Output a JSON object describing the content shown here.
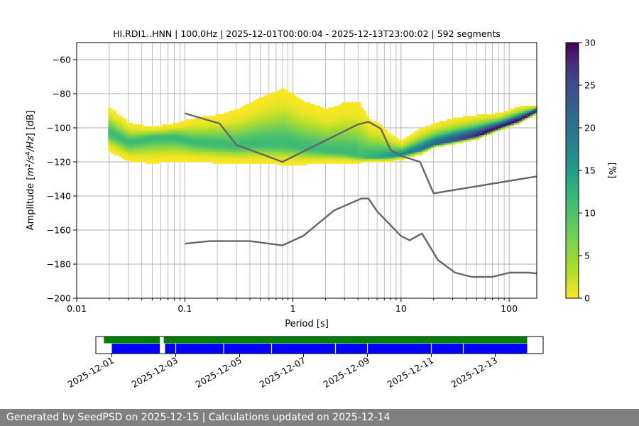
{
  "chart_data": [
    {
      "type": "heatmap",
      "title": "HI.RDI1..HNN | 100.0Hz | 2025-12-01T00:00:04 - 2025-12-13T23:00:02 | 592 segments",
      "xlabel": "Period [s]",
      "ylabel_parts": [
        "Amplitude [",
        "m",
        "2",
        "/",
        "s",
        "4",
        "/",
        "Hz",
        "] [dB]"
      ],
      "x_scale": "log",
      "xlim": [
        0.01,
        180
      ],
      "ylim": [
        -200,
        -50
      ],
      "x_ticks": [
        {
          "value": 0.01,
          "label": "0.01"
        },
        {
          "value": 0.1,
          "label": "0.1"
        },
        {
          "value": 1,
          "label": "1"
        },
        {
          "value": 10,
          "label": "10"
        },
        {
          "value": 100,
          "label": "100"
        }
      ],
      "y_ticks": [
        {
          "value": -60,
          "label": "−60"
        },
        {
          "value": -80,
          "label": "−80"
        },
        {
          "value": -100,
          "label": "−100"
        },
        {
          "value": -120,
          "label": "−120"
        },
        {
          "value": -140,
          "label": "−140"
        },
        {
          "value": -160,
          "label": "−160"
        },
        {
          "value": -180,
          "label": "−180"
        },
        {
          "value": -200,
          "label": "−200"
        }
      ],
      "grid": true,
      "colormap": "viridis_r",
      "colorbar": {
        "label": "[%]",
        "range": [
          0,
          30
        ],
        "ticks": [
          {
            "value": 0,
            "label": "0"
          },
          {
            "value": 5,
            "label": "5"
          },
          {
            "value": 10,
            "label": "10"
          },
          {
            "value": 15,
            "label": "15"
          },
          {
            "value": 20,
            "label": "20"
          },
          {
            "value": 25,
            "label": "25"
          },
          {
            "value": 30,
            "label": "30"
          }
        ]
      },
      "density_trend": {
        "period": [
          0.019,
          0.03,
          0.05,
          0.08,
          0.12,
          0.2,
          0.3,
          0.5,
          0.8,
          1.2,
          2,
          3,
          4,
          5,
          6,
          8,
          10,
          15,
          20,
          30,
          50,
          80,
          120,
          180
        ],
        "mode": [
          -103,
          -109,
          -106,
          -106,
          -109,
          -110,
          -111,
          -110,
          -110,
          -112,
          -114,
          -115,
          -117,
          -118,
          -118,
          -117,
          -116,
          -113,
          -110,
          -108,
          -105,
          -100,
          -96,
          -90
        ],
        "upper": [
          -88,
          -98,
          -100,
          -98,
          -95,
          -93,
          -90,
          -83,
          -78,
          -85,
          -90,
          -86,
          -86,
          -96,
          -98,
          -105,
          -108,
          -101,
          -98,
          -95,
          -93,
          -92,
          -88,
          -87
        ],
        "lower": [
          -114,
          -120,
          -121,
          -120,
          -120,
          -121,
          -121,
          -121,
          -122,
          -122,
          -121,
          -121,
          -121,
          -120,
          -120,
          -120,
          -119,
          -116,
          -112,
          -110,
          -106,
          -101,
          -97,
          -91
        ]
      },
      "reference_curves": [
        {
          "period": [
            0.1,
            0.21,
            0.3,
            0.8,
            4,
            5,
            6.5,
            8,
            10,
            15,
            20,
            180
          ],
          "value": [
            -91.5,
            -97.5,
            -110,
            -120,
            -98,
            -96.5,
            -100.5,
            -113,
            -116.5,
            -120,
            -138.5,
            -128.5
          ]
        },
        {
          "period": [
            0.1,
            0.17,
            0.4,
            0.8,
            1.24,
            2.4,
            4.3,
            5,
            6,
            10,
            12,
            15.6,
            21.9,
            31.6,
            45,
            70,
            101,
            154,
            180
          ],
          "value": [
            -168,
            -166.5,
            -166.5,
            -169,
            -163.5,
            -148.5,
            -141.5,
            -141.5,
            -149,
            -163.5,
            -166,
            -162,
            -177.5,
            -185,
            -187.5,
            -187.5,
            -185,
            -185,
            -185.5
          ]
        }
      ]
    },
    {
      "type": "timeline",
      "start": "2025-11-30T12:00:00",
      "end": "2025-12-14T12:00:00",
      "tick_labels": [
        {
          "date": "2025-12-01",
          "label": "2025-12-01"
        },
        {
          "date": "2025-12-03",
          "label": "2025-12-03"
        },
        {
          "date": "2025-12-05",
          "label": "2025-12-05"
        },
        {
          "date": "2025-12-07",
          "label": "2025-12-07"
        },
        {
          "date": "2025-12-09",
          "label": "2025-12-09"
        },
        {
          "date": "2025-12-11",
          "label": "2025-12-11"
        },
        {
          "date": "2025-12-13",
          "label": "2025-12-13"
        }
      ],
      "bars": [
        {
          "color": "#008000",
          "segments": [
            [
              "2025-11-30T18:00:00",
              "2025-12-02T12:00:00"
            ],
            [
              "2025-12-02T15:00:00",
              "2025-12-14T00:00:00"
            ]
          ]
        },
        {
          "color": "#0000ff",
          "segments": [
            [
              "2025-12-01T00:00:00",
              "2025-12-02T12:00:00"
            ],
            [
              "2025-12-02T16:00:00",
              "2025-12-14T00:00:00"
            ]
          ]
        }
      ],
      "gaps": [
        "2025-12-03T00:00:00",
        "2025-12-04T12:00:00",
        "2025-12-06T00:00:00",
        "2025-12-08T00:00:00",
        "2025-12-09T00:00:00",
        "2025-12-11T00:00:00",
        "2025-12-12T00:00:00"
      ]
    }
  ],
  "footer": {
    "text": "Generated by SeedPSD on 2025-12-15 | Calculations updated on 2025-12-14"
  }
}
